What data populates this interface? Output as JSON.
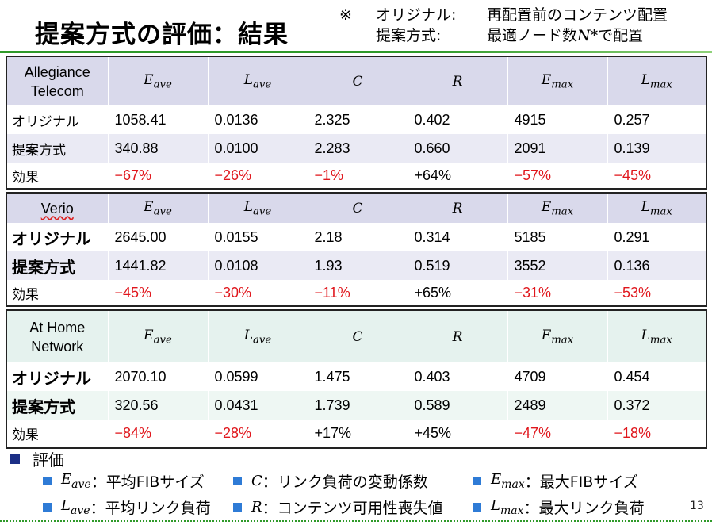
{
  "title": "提案方式の評価：結果",
  "note": {
    "mark": "※",
    "line1_label": "オリジナル:",
    "line1_text": "再配置前のコンテンツ配置",
    "line2_label": "提案方式:",
    "line2_text_pre": "最適ノード数",
    "line2_symbol": "N*",
    "line2_text_post": "で配置"
  },
  "column_symbols": [
    {
      "base": "E",
      "sub": "ave"
    },
    {
      "base": "L",
      "sub": "ave"
    },
    {
      "base": "C",
      "sub": ""
    },
    {
      "base": "R",
      "sub": ""
    },
    {
      "base": "E",
      "sub": "max"
    },
    {
      "base": "L",
      "sub": "max"
    }
  ],
  "networks": [
    {
      "name_line1": "Allegiance",
      "name_line2": "Telecom",
      "rows": [
        {
          "label": "オリジナル",
          "values": [
            "1058.41",
            "0.0136",
            "2.325",
            "0.402",
            "4915",
            "0.257"
          ]
        },
        {
          "label": "提案方式",
          "values": [
            "340.88",
            "0.0100",
            "2.283",
            "0.660",
            "2091",
            "0.139"
          ]
        },
        {
          "label": "効果",
          "values": [
            "−67%",
            "−26%",
            "−1%",
            "+64%",
            "−57%",
            "−45%"
          ]
        }
      ]
    },
    {
      "name_line1": "Verio",
      "name_line2": "",
      "rows": [
        {
          "label": "オリジナル",
          "values": [
            "2645.00",
            "0.0155",
            "2.18",
            "0.314",
            "5185",
            "0.291"
          ]
        },
        {
          "label": "提案方式",
          "values": [
            "1441.82",
            "0.0108",
            "1.93",
            "0.519",
            "3552",
            "0.136"
          ]
        },
        {
          "label": "効果",
          "values": [
            "−45%",
            "−30%",
            "−11%",
            "+65%",
            "−31%",
            "−53%"
          ]
        }
      ]
    },
    {
      "name_line1": "At Home",
      "name_line2": "Network",
      "rows": [
        {
          "label": "オリジナル",
          "values": [
            "2070.10",
            "0.0599",
            "1.475",
            "0.403",
            "4709",
            "0.454"
          ]
        },
        {
          "label": "提案方式",
          "values": [
            "320.56",
            "0.0431",
            "1.739",
            "0.589",
            "2489",
            "0.372"
          ]
        },
        {
          "label": "効果",
          "values": [
            "−84%",
            "−28%",
            "+17%",
            "+45%",
            "−47%",
            "−18%"
          ]
        }
      ]
    }
  ],
  "legend": {
    "heading": "評価",
    "items": [
      {
        "base": "E",
        "sub": "ave",
        "text": "平均FIBサイズ"
      },
      {
        "base": "C",
        "sub": "",
        "text": "リンク負荷の変動係数"
      },
      {
        "base": "E",
        "sub": "max",
        "text": "最大FIBサイズ"
      },
      {
        "base": "L",
        "sub": "ave",
        "text": "平均リンク負荷"
      },
      {
        "base": "R",
        "sub": "",
        "text": "コンテンツ可用性喪失値"
      },
      {
        "base": "L",
        "sub": "max",
        "text": "最大リンク負荷"
      }
    ],
    "separator": "："
  },
  "page_number": "13",
  "colors": {
    "accent_green": "#2f9a2a",
    "negative_red": "#e0161c",
    "header_lavender": "#d9d9eb",
    "header_mint": "#e5f2ee",
    "bullet_blue": "#2e7bd6"
  }
}
